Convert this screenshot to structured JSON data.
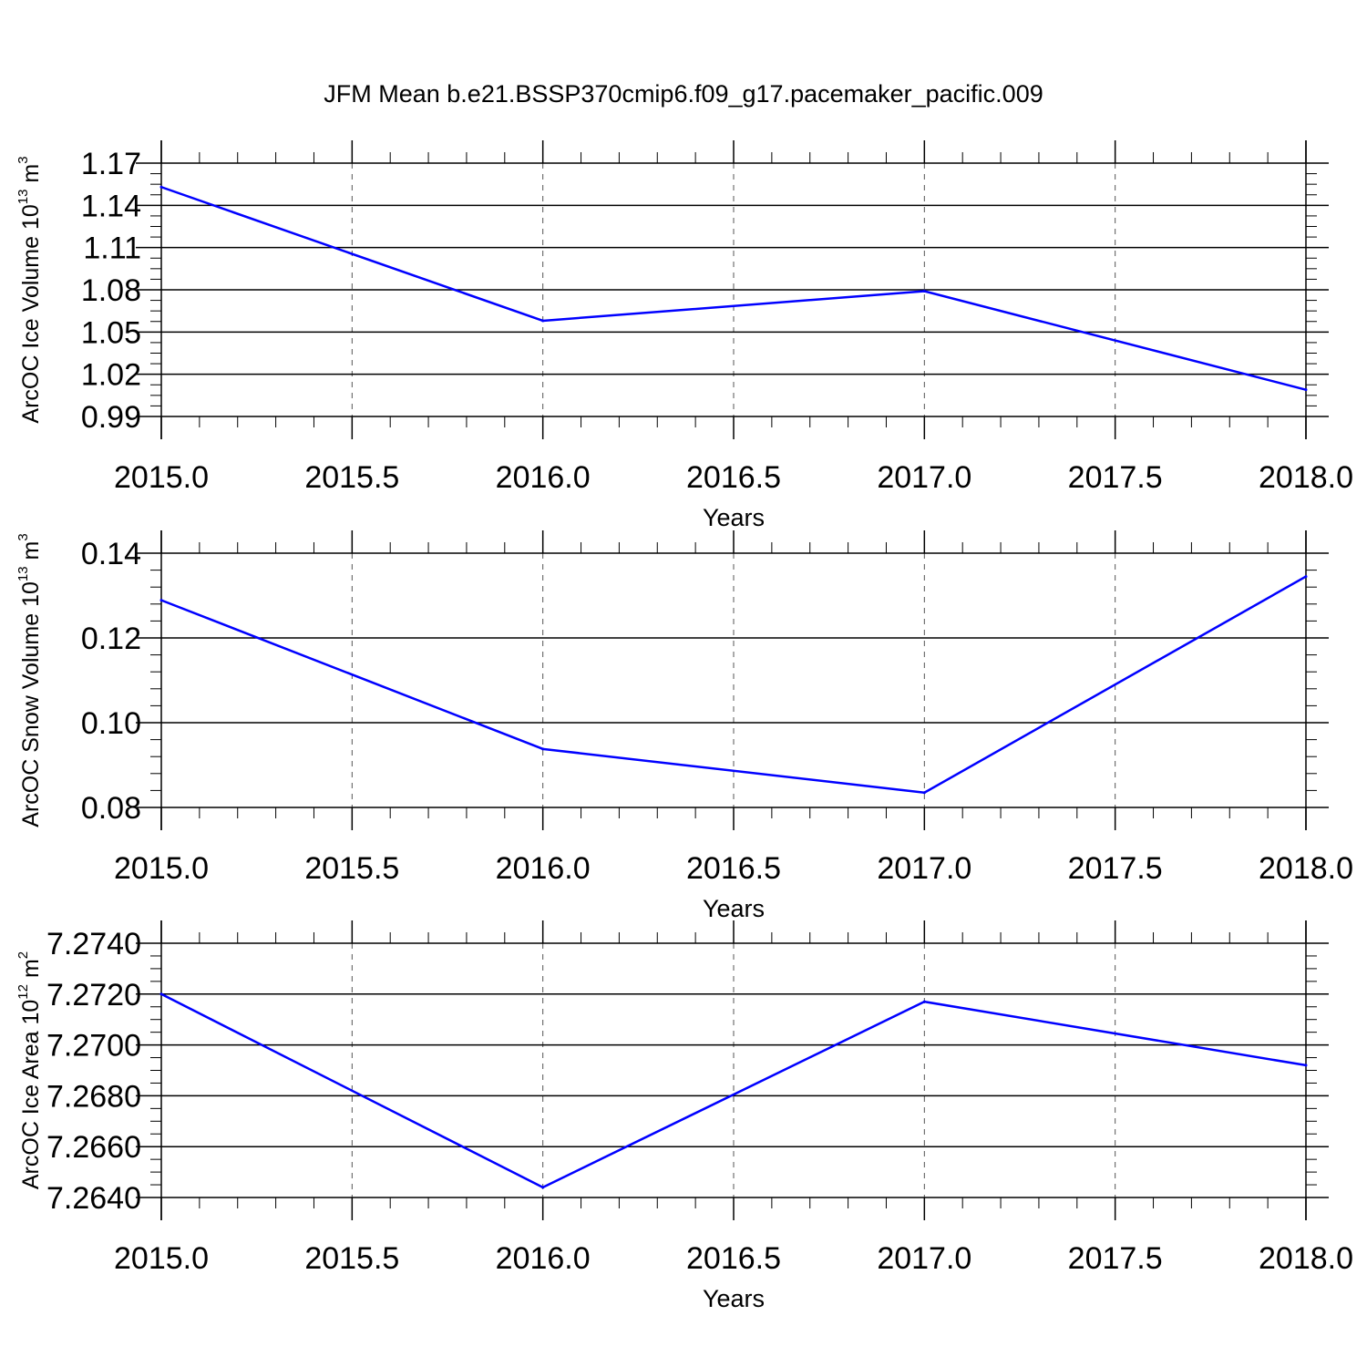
{
  "title": "JFM Mean b.e21.BSSP370cmip6.f09_g17.pacemaker_pacific.009",
  "colors": {
    "line": "#0000ff",
    "axis": "#000000",
    "grid": "#555555"
  },
  "chart_data": [
    {
      "type": "line",
      "title": "JFM Mean b.e21.BSSP370cmip6.f09_g17.pacemaker_pacific.009",
      "xlabel": "Years",
      "ylabel": {
        "base": "ArcOC Ice Volume 10",
        "exp": "13",
        "unit": " m",
        "unit_exp": "3"
      },
      "x": [
        2015.0,
        2016.0,
        2017.0,
        2018.0
      ],
      "values": [
        1.153,
        1.058,
        1.079,
        1.009
      ],
      "xlim": [
        2015.0,
        2018.0
      ],
      "ylim": [
        0.99,
        1.17
      ],
      "xticks": [
        "2015.0",
        "2015.5",
        "2016.0",
        "2016.5",
        "2017.0",
        "2017.5",
        "2018.0"
      ],
      "yticks": [
        "0.99",
        "1.02",
        "1.05",
        "1.08",
        "1.11",
        "1.14",
        "1.17"
      ],
      "grid": "vertical-dashed"
    },
    {
      "type": "line",
      "xlabel": "Years",
      "ylabel": {
        "base": "ArcOC Snow Volume 10",
        "exp": "13",
        "unit": " m",
        "unit_exp": "3"
      },
      "x": [
        2015.0,
        2016.0,
        2017.0,
        2018.0
      ],
      "values": [
        0.1289,
        0.0938,
        0.0835,
        0.1345
      ],
      "xlim": [
        2015.0,
        2018.0
      ],
      "ylim": [
        0.08,
        0.14
      ],
      "xticks": [
        "2015.0",
        "2015.5",
        "2016.0",
        "2016.5",
        "2017.0",
        "2017.5",
        "2018.0"
      ],
      "yticks": [
        "0.08",
        "0.10",
        "0.12",
        "0.14"
      ],
      "grid": "vertical-dashed"
    },
    {
      "type": "line",
      "xlabel": "Years",
      "ylabel": {
        "base": "ArcOC Ice Area 10",
        "exp": "12",
        "unit": " m",
        "unit_exp": "2"
      },
      "x": [
        2015.0,
        2016.0,
        2017.0,
        2018.0
      ],
      "values": [
        7.272,
        7.2644,
        7.2717,
        7.2692
      ],
      "xlim": [
        2015.0,
        2018.0
      ],
      "ylim": [
        7.264,
        7.274
      ],
      "xticks": [
        "2015.0",
        "2015.5",
        "2016.0",
        "2016.5",
        "2017.0",
        "2017.5",
        "2018.0"
      ],
      "yticks": [
        "7.2640",
        "7.2660",
        "7.2680",
        "7.2700",
        "7.2720",
        "7.2740"
      ],
      "grid": "vertical-dashed"
    }
  ]
}
